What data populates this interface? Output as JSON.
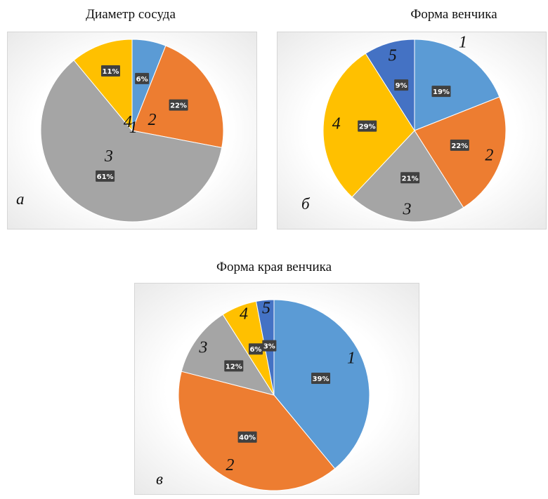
{
  "chart_data": [
    {
      "type": "pie",
      "title": "Диаметр сосуда",
      "panel_letter": "а",
      "slices": [
        {
          "label": "1",
          "value": 6,
          "value_label": "6%",
          "color": "#5b9bd5"
        },
        {
          "label": "2",
          "value": 22,
          "value_label": "22%",
          "color": "#ed7d31"
        },
        {
          "label": "3",
          "value": 61,
          "value_label": "61%",
          "color": "#a5a5a5"
        },
        {
          "label": "4",
          "value": 11,
          "value_label": "11%",
          "color": "#ffc000"
        }
      ]
    },
    {
      "type": "pie",
      "title": "Форма венчика",
      "panel_letter": "б",
      "slices": [
        {
          "label": "1",
          "value": 19,
          "value_label": "19%",
          "color": "#5b9bd5"
        },
        {
          "label": "2",
          "value": 22,
          "value_label": "22%",
          "color": "#ed7d31"
        },
        {
          "label": "3",
          "value": 21,
          "value_label": "21%",
          "color": "#a5a5a5"
        },
        {
          "label": "4",
          "value": 29,
          "value_label": "29%",
          "color": "#ffc000"
        },
        {
          "label": "5",
          "value": 9,
          "value_label": "9%",
          "color": "#4472c4"
        }
      ]
    },
    {
      "type": "pie",
      "title": "Форма края венчика",
      "panel_letter": "в",
      "slices": [
        {
          "label": "1",
          "value": 39,
          "value_label": "39%",
          "color": "#5b9bd5"
        },
        {
          "label": "2",
          "value": 40,
          "value_label": "40%",
          "color": "#ed7d31"
        },
        {
          "label": "3",
          "value": 12,
          "value_label": "12%",
          "color": "#a5a5a5"
        },
        {
          "label": "4",
          "value": 6,
          "value_label": "6%",
          "color": "#ffc000"
        },
        {
          "label": "5",
          "value": 3,
          "value_label": "3%",
          "color": "#4472c4"
        }
      ]
    }
  ]
}
